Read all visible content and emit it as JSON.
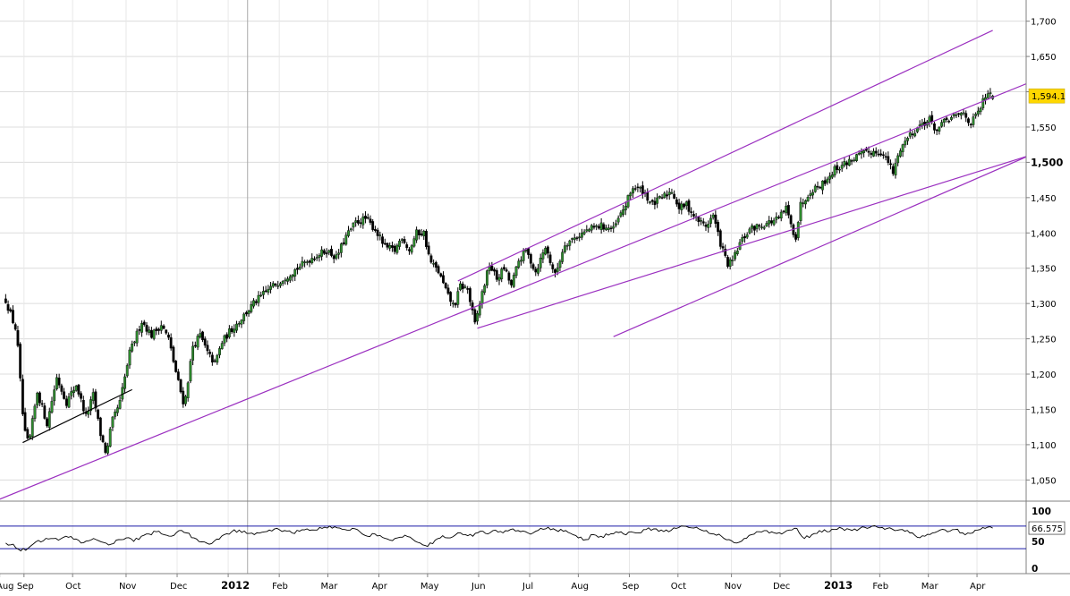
{
  "chart_data": {
    "type": "candlestick",
    "price_panel": {
      "y_ticks": [
        "1,050",
        "1,100",
        "1,150",
        "1,200",
        "1,250",
        "1,300",
        "1,350",
        "1,400",
        "1,450",
        "1,500",
        "1,550",
        "1,600",
        "1,650",
        "1,700"
      ],
      "y_tick_values": [
        1050,
        1100,
        1150,
        1200,
        1250,
        1300,
        1350,
        1400,
        1450,
        1500,
        1550,
        1600,
        1650,
        1700
      ],
      "major_ticks": [
        "1,500"
      ],
      "ylim": [
        1020,
        1730
      ],
      "last_price": "1,594.1",
      "last_price_value": 1594.1,
      "grid": true,
      "anchors": [
        {
          "t": 0.0,
          "v": 1305
        },
        {
          "t": 4.5,
          "v": 1260
        },
        {
          "t": 7.5,
          "v": 1120
        },
        {
          "t": 9.5,
          "v": 1100
        },
        {
          "t": 13,
          "v": 1175
        },
        {
          "t": 17,
          "v": 1130
        },
        {
          "t": 21,
          "v": 1195
        },
        {
          "t": 25,
          "v": 1160
        },
        {
          "t": 29,
          "v": 1185
        },
        {
          "t": 33,
          "v": 1140
        },
        {
          "t": 36,
          "v": 1170
        },
        {
          "t": 39,
          "v": 1115
        },
        {
          "t": 41.5,
          "v": 1085
        },
        {
          "t": 43.5,
          "v": 1130
        },
        {
          "t": 47,
          "v": 1160
        },
        {
          "t": 51,
          "v": 1230
        },
        {
          "t": 56,
          "v": 1275
        },
        {
          "t": 60,
          "v": 1255
        },
        {
          "t": 64,
          "v": 1270
        },
        {
          "t": 67,
          "v": 1250
        },
        {
          "t": 70.5,
          "v": 1195
        },
        {
          "t": 73.5,
          "v": 1155
        },
        {
          "t": 77,
          "v": 1240
        },
        {
          "t": 80,
          "v": 1255
        },
        {
          "t": 83,
          "v": 1230
        },
        {
          "t": 86,
          "v": 1215
        },
        {
          "t": 89,
          "v": 1245
        },
        {
          "t": 92,
          "v": 1260
        },
        {
          "t": 96,
          "v": 1275
        },
        {
          "t": 102,
          "v": 1300
        },
        {
          "t": 108,
          "v": 1320
        },
        {
          "t": 114,
          "v": 1335
        },
        {
          "t": 120,
          "v": 1350
        },
        {
          "t": 126,
          "v": 1365
        },
        {
          "t": 132,
          "v": 1375
        },
        {
          "t": 136,
          "v": 1365
        },
        {
          "t": 140,
          "v": 1395
        },
        {
          "t": 144,
          "v": 1415
        },
        {
          "t": 148,
          "v": 1420
        },
        {
          "t": 152,
          "v": 1405
        },
        {
          "t": 156,
          "v": 1380
        },
        {
          "t": 160,
          "v": 1375
        },
        {
          "t": 163,
          "v": 1395
        },
        {
          "t": 166,
          "v": 1375
        },
        {
          "t": 169,
          "v": 1400
        },
        {
          "t": 172,
          "v": 1400
        },
        {
          "t": 174.5,
          "v": 1360
        },
        {
          "t": 178,
          "v": 1345
        },
        {
          "t": 182,
          "v": 1310
        },
        {
          "t": 184.5,
          "v": 1295
        },
        {
          "t": 187,
          "v": 1325
        },
        {
          "t": 190,
          "v": 1320
        },
        {
          "t": 193,
          "v": 1270
        },
        {
          "t": 196,
          "v": 1315
        },
        {
          "t": 199,
          "v": 1355
        },
        {
          "t": 202,
          "v": 1335
        },
        {
          "t": 205,
          "v": 1350
        },
        {
          "t": 208,
          "v": 1325
        },
        {
          "t": 211,
          "v": 1360
        },
        {
          "t": 214,
          "v": 1375
        },
        {
          "t": 218,
          "v": 1345
        },
        {
          "t": 222,
          "v": 1380
        },
        {
          "t": 226,
          "v": 1340
        },
        {
          "t": 230,
          "v": 1385
        },
        {
          "t": 235,
          "v": 1395
        },
        {
          "t": 240,
          "v": 1405
        },
        {
          "t": 245,
          "v": 1410
        },
        {
          "t": 250,
          "v": 1405
        },
        {
          "t": 255,
          "v": 1440
        },
        {
          "t": 258,
          "v": 1465
        },
        {
          "t": 262,
          "v": 1460
        },
        {
          "t": 266,
          "v": 1440
        },
        {
          "t": 270,
          "v": 1450
        },
        {
          "t": 274,
          "v": 1460
        },
        {
          "t": 277,
          "v": 1435
        },
        {
          "t": 280,
          "v": 1440
        },
        {
          "t": 284,
          "v": 1420
        },
        {
          "t": 288,
          "v": 1410
        },
        {
          "t": 291,
          "v": 1425
        },
        {
          "t": 294,
          "v": 1385
        },
        {
          "t": 297,
          "v": 1355
        },
        {
          "t": 299,
          "v": 1360
        },
        {
          "t": 302,
          "v": 1385
        },
        {
          "t": 306,
          "v": 1405
        },
        {
          "t": 310,
          "v": 1410
        },
        {
          "t": 314,
          "v": 1415
        },
        {
          "t": 318,
          "v": 1420
        },
        {
          "t": 321,
          "v": 1435
        },
        {
          "t": 323.5,
          "v": 1405
        },
        {
          "t": 325,
          "v": 1395
        },
        {
          "t": 327,
          "v": 1440
        },
        {
          "t": 331,
          "v": 1460
        },
        {
          "t": 336,
          "v": 1470
        },
        {
          "t": 341,
          "v": 1490
        },
        {
          "t": 346,
          "v": 1500
        },
        {
          "t": 351,
          "v": 1510
        },
        {
          "t": 356,
          "v": 1515
        },
        {
          "t": 360,
          "v": 1515
        },
        {
          "t": 363,
          "v": 1500
        },
        {
          "t": 365,
          "v": 1485
        },
        {
          "t": 368,
          "v": 1520
        },
        {
          "t": 372,
          "v": 1540
        },
        {
          "t": 377,
          "v": 1555
        },
        {
          "t": 380,
          "v": 1560
        },
        {
          "t": 383,
          "v": 1545
        },
        {
          "t": 387,
          "v": 1560
        },
        {
          "t": 391,
          "v": 1565
        },
        {
          "t": 394,
          "v": 1570
        },
        {
          "t": 397,
          "v": 1555
        },
        {
          "t": 400,
          "v": 1570
        },
        {
          "t": 403,
          "v": 1594.1
        }
      ]
    },
    "indicator_panel": {
      "y_ticks": [
        "100",
        "50",
        "0"
      ],
      "y_tick_values": [
        100,
        50,
        0
      ],
      "ylim": [
        0,
        100
      ],
      "upper_band": 70,
      "lower_band": 30,
      "last_value": "66.575",
      "last_value_num": 66.575,
      "values": [
        40,
        38,
        26,
        31,
        42,
        44,
        48,
        45,
        52,
        47,
        40,
        44,
        46,
        41,
        38,
        46,
        49,
        43,
        52,
        56,
        60,
        55,
        52,
        62,
        58,
        49,
        42,
        38,
        47,
        55,
        60,
        63,
        57,
        55,
        59,
        63,
        66,
        62,
        58,
        61,
        65,
        63,
        66,
        70,
        67,
        64,
        66,
        60,
        52,
        56,
        50,
        45,
        49,
        54,
        47,
        40,
        34,
        45,
        53,
        49,
        58,
        55,
        52,
        61,
        56,
        63,
        58,
        64,
        62,
        60,
        58,
        66,
        68,
        63,
        61,
        57,
        49,
        46,
        55,
        52,
        54,
        60,
        56,
        60,
        58,
        64,
        65,
        63,
        60,
        66,
        70,
        67,
        65,
        62,
        56,
        52,
        46,
        40,
        48,
        55,
        60,
        62,
        58,
        56,
        63,
        66,
        48,
        55,
        62,
        60,
        64,
        66,
        64,
        62,
        68,
        70,
        67,
        66,
        62,
        64,
        58,
        50,
        52,
        58,
        63,
        60,
        64,
        58,
        57,
        63,
        66,
        66.575
      ]
    },
    "x_axis": {
      "labels": [
        {
          "label": "Aug",
          "t": -1,
          "bold": false
        },
        {
          "label": "Sep",
          "t": 9,
          "bold": false
        },
        {
          "label": "Oct",
          "t": 29,
          "bold": false
        },
        {
          "label": "Nov",
          "t": 51,
          "bold": false
        },
        {
          "label": "Dec",
          "t": 72,
          "bold": false
        },
        {
          "label": "2012",
          "t": 93,
          "bold": true
        },
        {
          "label": "Feb",
          "t": 114,
          "bold": false
        },
        {
          "label": "Mar",
          "t": 134,
          "bold": false
        },
        {
          "label": "Apr",
          "t": 155,
          "bold": false
        },
        {
          "label": "May",
          "t": 175,
          "bold": false
        },
        {
          "label": "Jun",
          "t": 196,
          "bold": false
        },
        {
          "label": "Jul",
          "t": 217,
          "bold": false
        },
        {
          "label": "Aug",
          "t": 237,
          "bold": false
        },
        {
          "label": "Sep",
          "t": 258,
          "bold": false
        },
        {
          "label": "Oct",
          "t": 278,
          "bold": false
        },
        {
          "label": "Nov",
          "t": 300,
          "bold": false
        },
        {
          "label": "Dec",
          "t": 320,
          "bold": false
        },
        {
          "label": "2013",
          "t": 341,
          "bold": true
        },
        {
          "label": "Feb",
          "t": 361,
          "bold": false
        },
        {
          "label": "Mar",
          "t": 381,
          "bold": false
        },
        {
          "label": "Apr",
          "t": 401,
          "bold": false
        }
      ],
      "year_dividers": [
        99.5,
        339.5
      ]
    },
    "trend_lines": [
      {
        "name": "lower-channel-long",
        "color": "#9b30c0",
        "t1": -3,
        "v1": 1022,
        "t2": 426,
        "v2": 1620
      },
      {
        "name": "upper-channel-long",
        "color": "#9b30c0",
        "t1": 186,
        "v1": 1332,
        "t2": 406,
        "v2": 1687
      },
      {
        "name": "mid-channel",
        "color": "#9b30c0",
        "t1": 194,
        "v1": 1265,
        "t2": 426,
        "v2": 1515
      },
      {
        "name": "lower-channel-short",
        "color": "#9b30c0",
        "t1": 250,
        "v1": 1253,
        "t2": 426,
        "v2": 1517
      },
      {
        "name": "oct-resistance",
        "color": "#000000",
        "t1": 7,
        "v1": 1103,
        "t2": 52,
        "v2": 1178
      }
    ],
    "colors": {
      "up_candle": "#2e8b2e",
      "down_candle": "#000000",
      "trend": "#9b30c0",
      "band": "#1a1aa8",
      "price_label_bg": "#ffd700",
      "grid": "#dcdcdc"
    }
  }
}
